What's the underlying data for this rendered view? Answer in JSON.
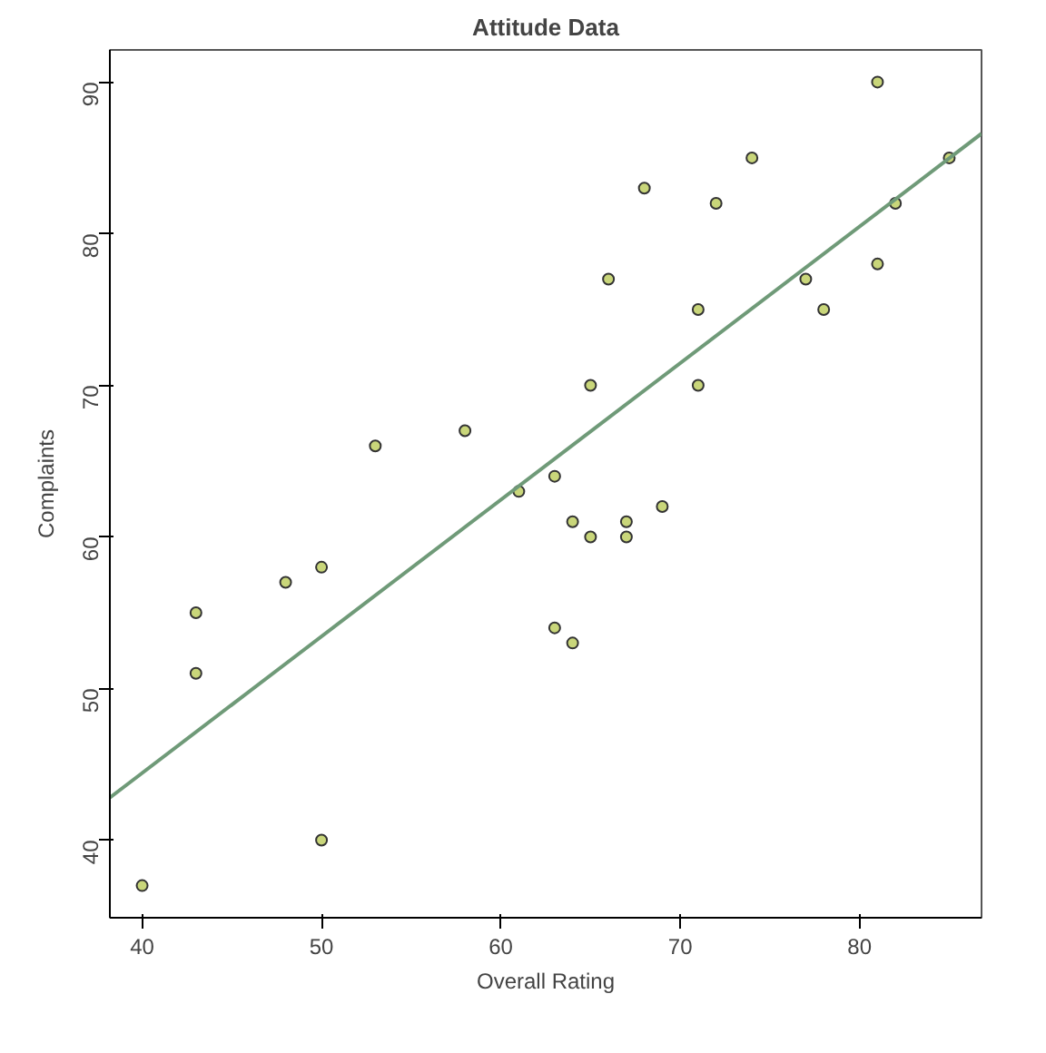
{
  "chart_data": {
    "type": "scatter",
    "title": "Attitude Data",
    "xlabel": "Overall Rating",
    "ylabel": "Complaints",
    "xlim": [
      38.2,
      86.8
    ],
    "ylim": [
      34.88,
      92.12
    ],
    "xticks": [
      40,
      50,
      60,
      70,
      80
    ],
    "yticks": [
      40,
      50,
      60,
      70,
      80,
      90
    ],
    "grid": false,
    "series": [
      {
        "marker": "circle",
        "color": "#c9d67a",
        "x": [
          43,
          63,
          71,
          61,
          81,
          43,
          58,
          71,
          72,
          67,
          64,
          67,
          69,
          68,
          77,
          81,
          74,
          65,
          65,
          50,
          50,
          64,
          53,
          40,
          63,
          66,
          78,
          48,
          85,
          82
        ],
        "values": [
          51,
          64,
          70,
          63,
          78,
          55,
          67,
          75,
          82,
          61,
          53,
          60,
          62,
          83,
          77,
          90,
          85,
          60,
          70,
          58,
          40,
          61,
          66,
          37,
          54,
          77,
          75,
          57,
          85,
          82
        ]
      },
      {
        "type": "line",
        "color": "#6f9a78",
        "x": [
          38.2,
          86.8
        ],
        "values": [
          42.8,
          86.6
        ]
      }
    ]
  }
}
